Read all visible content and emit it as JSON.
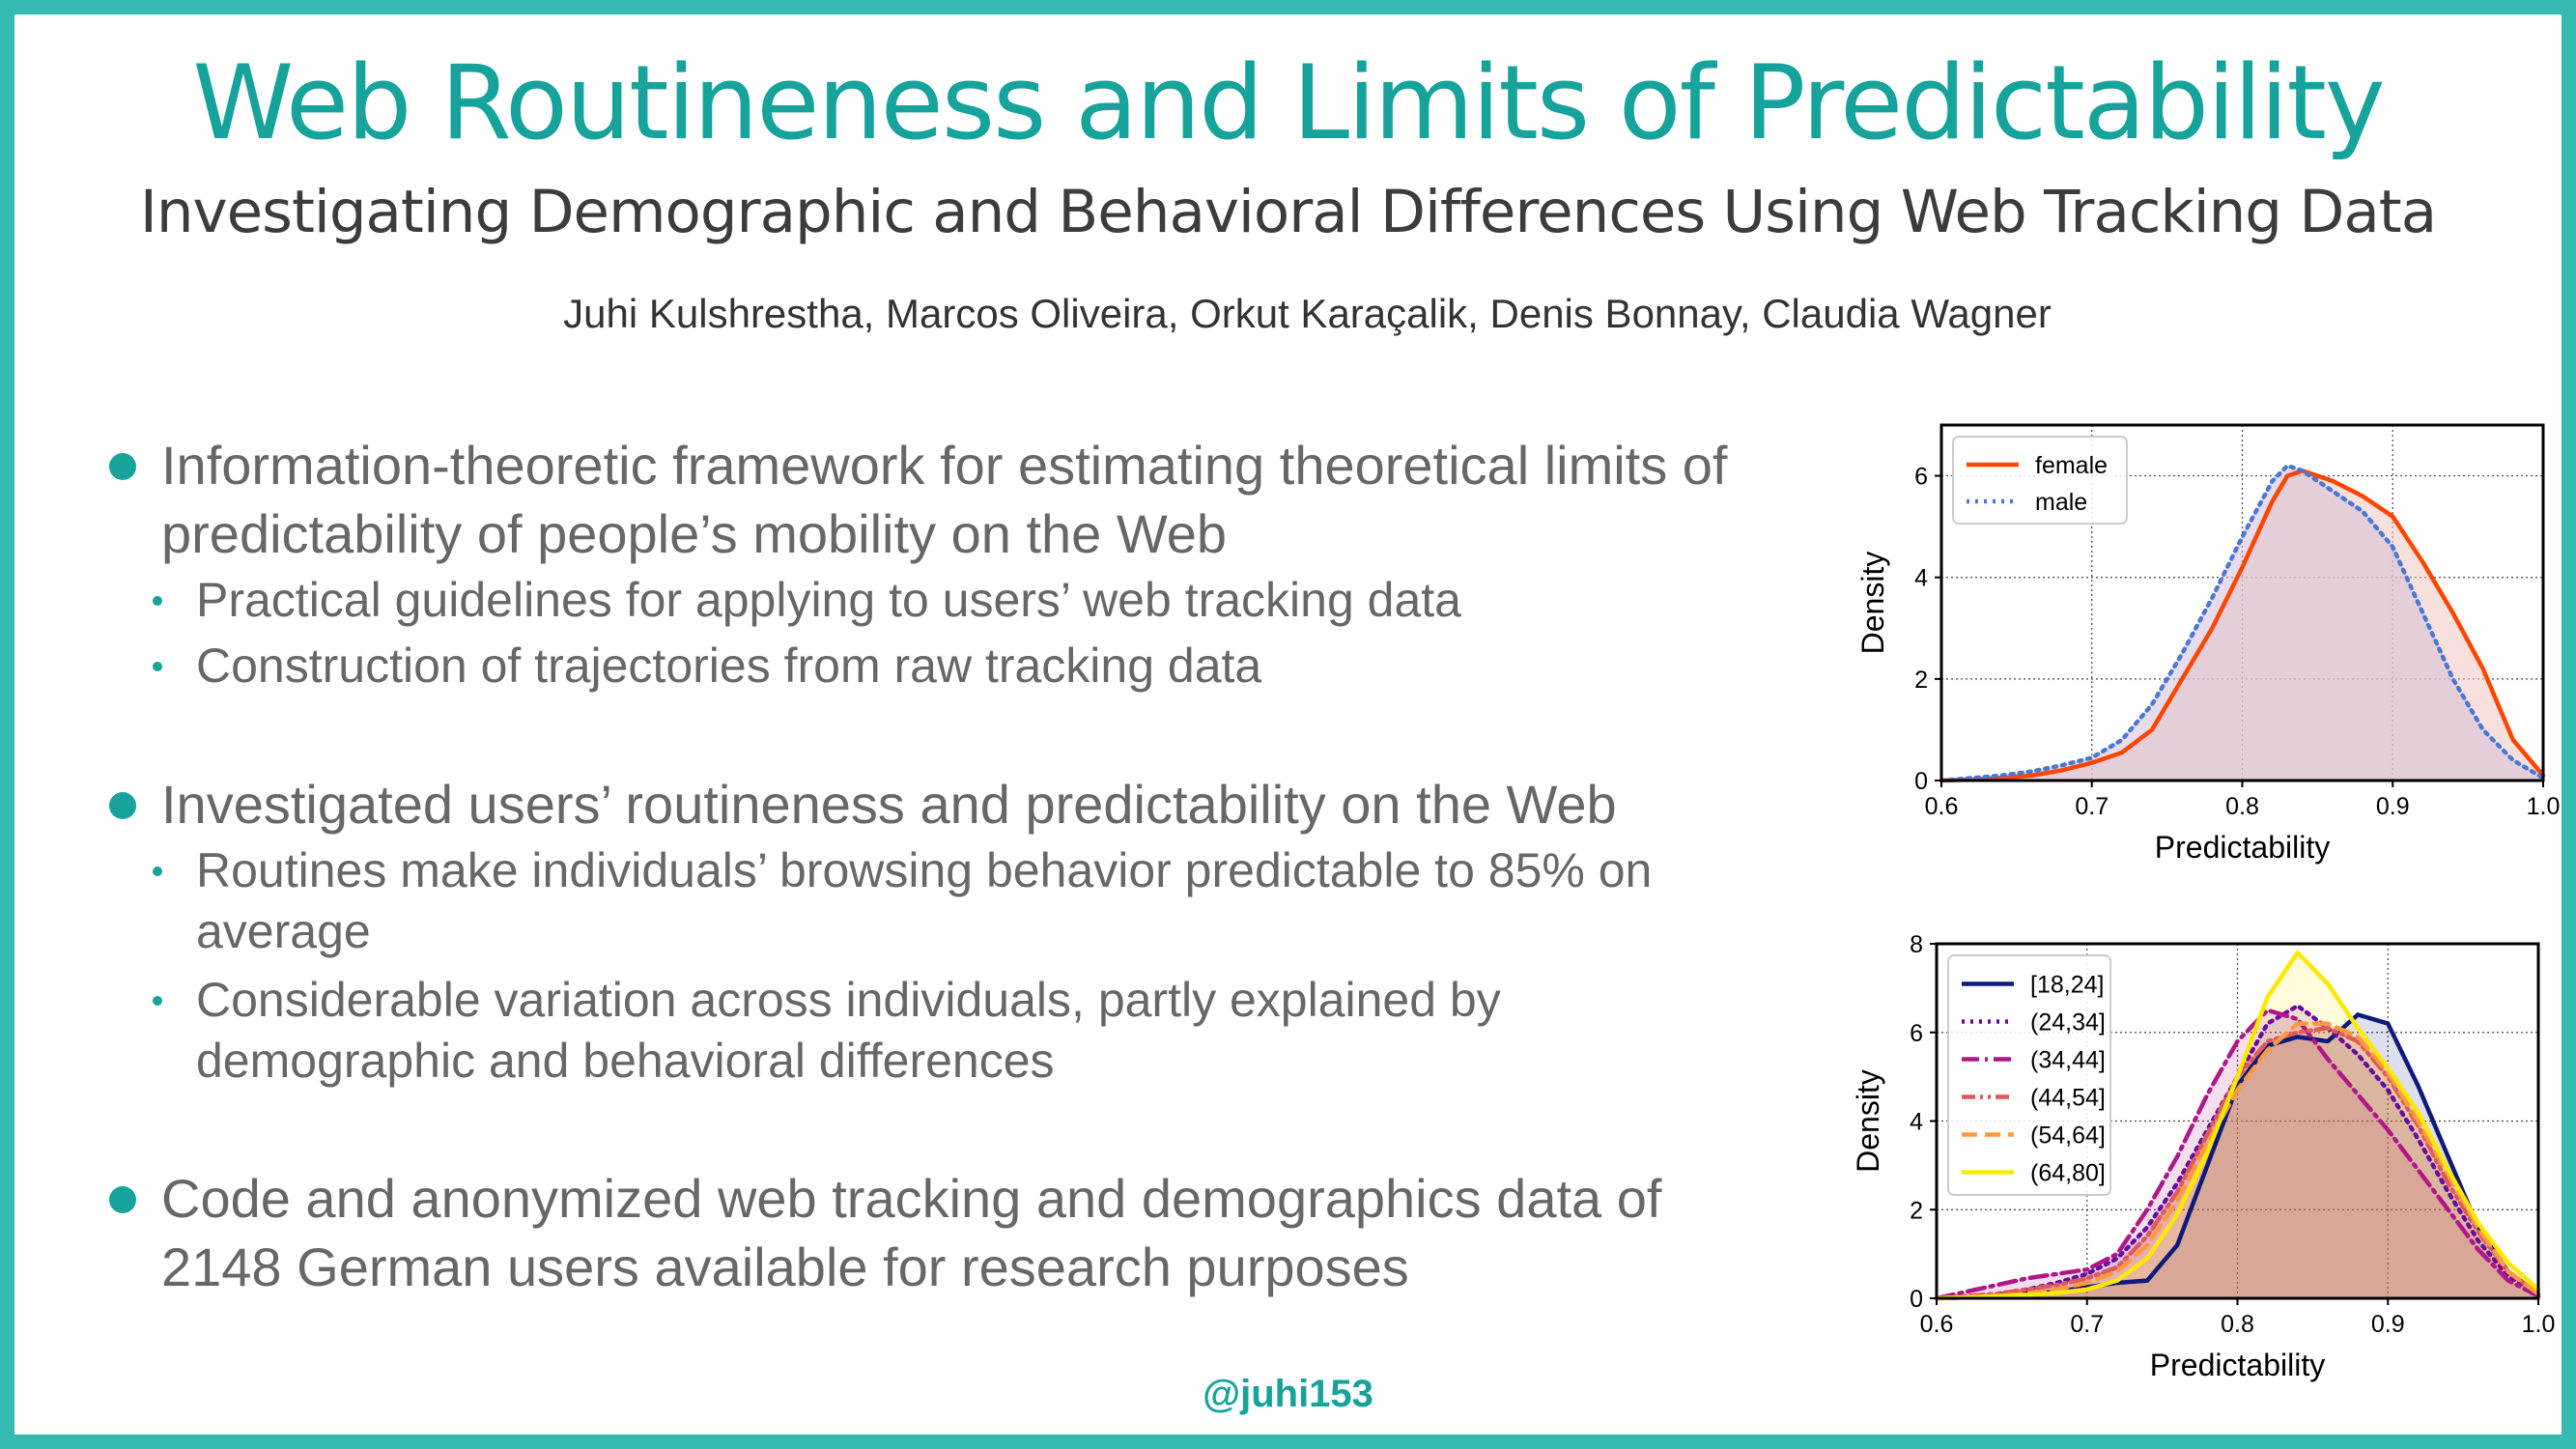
{
  "title": "Web Routineness and Limits of Predictability",
  "subtitle": "Investigating Demographic and Behavioral Differences Using Web Tracking Data",
  "authors": "Juhi Kulshrestha, Marcos Oliveira, Orkut Karaçalik, Denis Bonnay, Claudia Wagner",
  "bullets": [
    {
      "lines": [
        "Information-theoretic framework for estimating theoretical limits of",
        "predictability of people’s mobility on the Web"
      ],
      "sub": [
        {
          "lines": [
            "Practical guidelines for applying to users’ web tracking data"
          ]
        },
        {
          "lines": [
            "Construction of trajectories from raw tracking data"
          ]
        }
      ]
    },
    {
      "lines": [
        "Investigated users’ routineness and predictability on the Web"
      ],
      "sub": [
        {
          "lines": [
            "Routines make individuals’ browsing behavior predictable to 85% on",
            "average"
          ]
        },
        {
          "lines": [
            "Considerable variation across individuals, partly explained by",
            "demographic and behavioral differences"
          ]
        }
      ]
    },
    {
      "lines": [
        "Code and anonymized web tracking and demographics data of",
        "2148 German users available for research purposes"
      ],
      "sub": []
    }
  ],
  "handle": "@juhi153",
  "colors": {
    "accent": "#16a39b",
    "border": "#35b9b0",
    "text": "#676767"
  },
  "chart_data": [
    {
      "type": "line",
      "title": "",
      "xlabel": "Predictability",
      "ylabel": "Density",
      "xlim": [
        0.6,
        1.0
      ],
      "ylim": [
        0,
        7
      ],
      "xticks": [
        "0.6",
        "0.7",
        "0.8",
        "0.9",
        "1.0"
      ],
      "yticks": [
        "0",
        "2",
        "4",
        "6"
      ],
      "grid": true,
      "legend": "top-left",
      "x": [
        0.6,
        0.62,
        0.64,
        0.66,
        0.68,
        0.7,
        0.72,
        0.74,
        0.76,
        0.78,
        0.8,
        0.82,
        0.83,
        0.84,
        0.86,
        0.88,
        0.9,
        0.92,
        0.94,
        0.96,
        0.98,
        1.0
      ],
      "series": [
        {
          "name": "female",
          "color": "#ff4500",
          "dash": "solid",
          "fill": "#f2c8c0",
          "values": [
            0,
            0.02,
            0.05,
            0.1,
            0.2,
            0.35,
            0.55,
            1.0,
            2.0,
            3.0,
            4.2,
            5.5,
            6.0,
            6.1,
            5.9,
            5.6,
            5.2,
            4.3,
            3.3,
            2.2,
            0.8,
            0.1
          ]
        },
        {
          "name": "male",
          "color": "#4a78d4",
          "dash": "dotted",
          "fill": "#d4bfd8",
          "values": [
            0,
            0.05,
            0.1,
            0.18,
            0.3,
            0.45,
            0.8,
            1.5,
            2.5,
            3.6,
            4.8,
            5.9,
            6.2,
            6.1,
            5.7,
            5.3,
            4.6,
            3.3,
            2.0,
            1.0,
            0.4,
            0.05
          ]
        }
      ]
    },
    {
      "type": "line",
      "title": "",
      "xlabel": "Predictability",
      "ylabel": "Density",
      "xlim": [
        0.6,
        1.0
      ],
      "ylim": [
        0,
        8
      ],
      "xticks": [
        "0.6",
        "0.7",
        "0.8",
        "0.9",
        "1.0"
      ],
      "yticks": [
        "0",
        "2",
        "4",
        "6",
        "8"
      ],
      "grid": true,
      "legend": "top-left",
      "x": [
        0.6,
        0.62,
        0.64,
        0.66,
        0.68,
        0.7,
        0.72,
        0.74,
        0.76,
        0.78,
        0.8,
        0.82,
        0.84,
        0.86,
        0.88,
        0.9,
        0.92,
        0.94,
        0.96,
        0.98,
        1.0
      ],
      "series": [
        {
          "name": "[18,24]",
          "color": "#0d1a7a",
          "dash": "solid",
          "values": [
            0,
            0.02,
            0.05,
            0.1,
            0.15,
            0.25,
            0.35,
            0.4,
            1.2,
            3.0,
            4.8,
            5.7,
            5.9,
            5.8,
            6.4,
            6.2,
            4.8,
            3.2,
            1.6,
            0.6,
            0.1
          ]
        },
        {
          "name": "(24,34]",
          "color": "#6a0aa0",
          "dash": "dotted",
          "values": [
            0,
            0.05,
            0.1,
            0.2,
            0.35,
            0.55,
            0.9,
            1.6,
            2.6,
            3.8,
            5.0,
            6.2,
            6.6,
            6.1,
            5.5,
            4.7,
            3.6,
            2.4,
            1.3,
            0.5,
            0.1
          ]
        },
        {
          "name": "(34,44]",
          "color": "#b0188a",
          "dash": "dashdot",
          "values": [
            0,
            0.15,
            0.3,
            0.45,
            0.55,
            0.65,
            1.0,
            2.0,
            3.2,
            4.6,
            5.8,
            6.5,
            6.3,
            5.4,
            4.6,
            3.8,
            2.9,
            2.0,
            1.1,
            0.4,
            0.05
          ]
        },
        {
          "name": "(44,54]",
          "color": "#e05a5a",
          "dash": "dashdotdot",
          "values": [
            0,
            0.05,
            0.1,
            0.2,
            0.3,
            0.45,
            0.7,
            1.4,
            2.4,
            3.7,
            5.0,
            5.8,
            6.0,
            6.1,
            5.8,
            5.0,
            3.9,
            2.6,
            1.5,
            0.6,
            0.1
          ]
        },
        {
          "name": "(54,64]",
          "color": "#ff9a40",
          "dash": "dashed",
          "values": [
            0,
            0.02,
            0.05,
            0.1,
            0.2,
            0.35,
            0.6,
            1.2,
            2.2,
            3.5,
            4.7,
            5.6,
            6.2,
            6.2,
            5.9,
            5.1,
            4.0,
            2.8,
            1.6,
            0.6,
            0.1
          ]
        },
        {
          "name": "(64,80]",
          "color": "#ffe800",
          "dash": "solid",
          "values": [
            0,
            0.02,
            0.05,
            0.08,
            0.12,
            0.2,
            0.4,
            0.9,
            1.9,
            3.3,
            5.0,
            6.8,
            7.8,
            7.1,
            6.1,
            5.2,
            4.2,
            2.9,
            1.7,
            0.8,
            0.2
          ]
        }
      ]
    }
  ]
}
